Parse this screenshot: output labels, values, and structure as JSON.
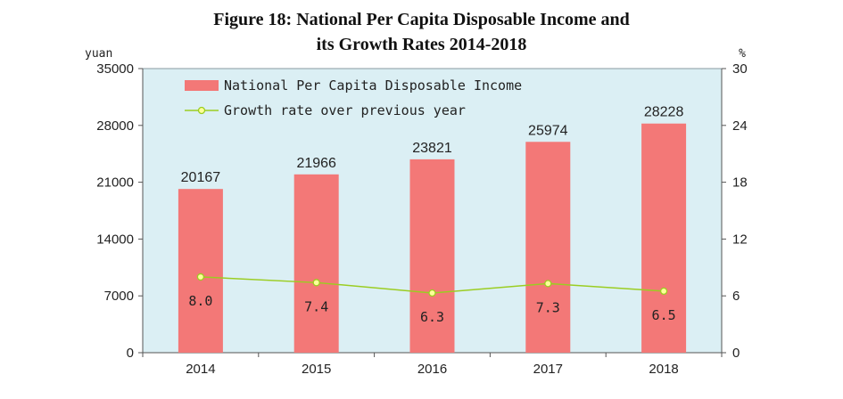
{
  "chart_data": {
    "type": "bar",
    "title_line1": "Figure 18: National Per Capita Disposable Income and",
    "title_line2": "its Growth Rates 2014-2018",
    "left_unit": "yuan",
    "right_unit": "%",
    "categories": [
      "2014",
      "2015",
      "2016",
      "2017",
      "2018"
    ],
    "series": [
      {
        "name": "National Per Capita Disposable Income",
        "type": "bar",
        "axis": "left",
        "values": [
          20167,
          21966,
          23821,
          25974,
          28228
        ]
      },
      {
        "name": "Growth rate over previous year",
        "type": "line",
        "axis": "right",
        "values": [
          8.0,
          7.4,
          6.3,
          7.3,
          6.5
        ]
      }
    ],
    "left_axis": {
      "min": 0,
      "max": 35000,
      "ticks": [
        0,
        7000,
        14000,
        21000,
        28000,
        35000
      ]
    },
    "right_axis": {
      "min": 0,
      "max": 30,
      "ticks": [
        0,
        6,
        12,
        18,
        24,
        30
      ]
    },
    "legend_position": "top-left",
    "colors": {
      "bar": "#f37877",
      "line": "#9bcd22",
      "marker_fill": "#ffff99",
      "plot_background": "#dbeff4"
    }
  }
}
